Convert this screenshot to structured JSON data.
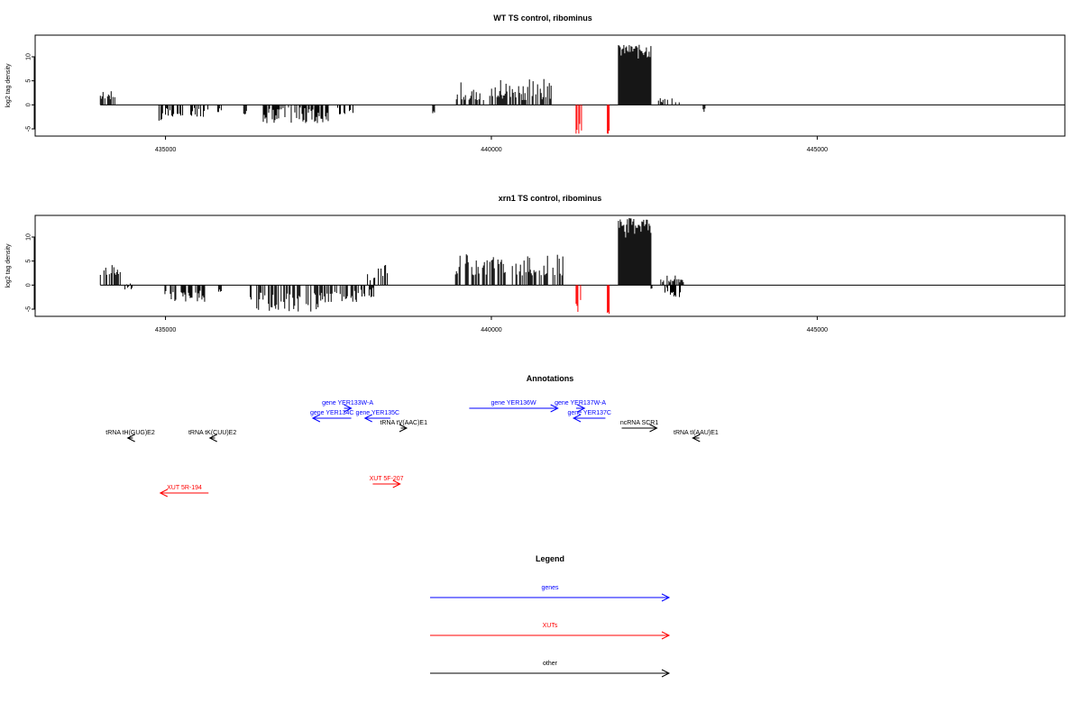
{
  "colors": {
    "genes": "#0000ff",
    "xuts": "#ff0000",
    "other": "#000000",
    "negative_highlight": "#ff0000"
  },
  "chart_data": [
    {
      "type": "bar",
      "title": "WT TS control, ribominus",
      "ylabel": "log2 tag density",
      "xlim": [
        433000,
        448800
      ],
      "ylim": [
        -6.5,
        14.5
      ],
      "xticks": [
        435000,
        440000,
        445000
      ],
      "xtick_labels": [
        "435000",
        "440000",
        "445000"
      ],
      "yticks": [
        -5,
        0,
        5,
        10
      ],
      "ytick_labels": [
        "-5",
        "0",
        "5",
        "10"
      ],
      "baseline": [
        434000,
        448800
      ],
      "segments": [
        {
          "x0": 434000,
          "x1": 434250,
          "min": 1.0,
          "max": 3.0,
          "color": "#000000"
        },
        {
          "x0": 434900,
          "x1": 434960,
          "min": -3.5,
          "max": -1.0,
          "color": "#000000"
        },
        {
          "x0": 435000,
          "x1": 435650,
          "min": -2.5,
          "max": -0.5,
          "color": "#000000"
        },
        {
          "x0": 435800,
          "x1": 435850,
          "min": -1.5,
          "max": -0.5,
          "color": "#000000"
        },
        {
          "x0": 436200,
          "x1": 436240,
          "min": -2.0,
          "max": -1.0,
          "color": "#000000"
        },
        {
          "x0": 436500,
          "x1": 437500,
          "min": -3.8,
          "max": -0.5,
          "color": "#000000"
        },
        {
          "x0": 437600,
          "x1": 437900,
          "min": -2.0,
          "max": -0.5,
          "color": "#000000"
        },
        {
          "x0": 439100,
          "x1": 439130,
          "min": -2.0,
          "max": -1.0,
          "color": "#000000"
        },
        {
          "x0": 439450,
          "x1": 440950,
          "min": 1.0,
          "max": 5.5,
          "color": "#000000"
        },
        {
          "x0": 441300,
          "x1": 441380,
          "min": -6.0,
          "max": -1.5,
          "color": "#ff0000"
        },
        {
          "x0": 441780,
          "x1": 441810,
          "min": -6.0,
          "max": -5.0,
          "color": "#ff0000"
        },
        {
          "x0": 441950,
          "x1": 442450,
          "min": 8.5,
          "max": 12.5,
          "color": "#000000"
        },
        {
          "x0": 442550,
          "x1": 442900,
          "min": 0.5,
          "max": 1.5,
          "color": "#000000"
        },
        {
          "x0": 443250,
          "x1": 443280,
          "min": -1.5,
          "max": -0.5,
          "color": "#000000"
        }
      ]
    },
    {
      "type": "bar",
      "title": "xrn1 TS control, ribominus",
      "ylabel": "log2 tag density",
      "xlim": [
        433000,
        448800
      ],
      "ylim": [
        -6.5,
        14.5
      ],
      "xticks": [
        435000,
        440000,
        445000
      ],
      "xtick_labels": [
        "435000",
        "440000",
        "445000"
      ],
      "yticks": [
        -5,
        0,
        5,
        10
      ],
      "ytick_labels": [
        "-5",
        "0",
        "5",
        "10"
      ],
      "baseline": [
        434000,
        448800
      ],
      "segments": [
        {
          "x0": 434000,
          "x1": 434300,
          "min": 2.0,
          "max": 4.5,
          "color": "#000000"
        },
        {
          "x0": 434350,
          "x1": 434500,
          "min": -1.0,
          "max": 0.5,
          "color": "#000000"
        },
        {
          "x0": 434950,
          "x1": 435600,
          "min": -3.5,
          "max": -1.0,
          "color": "#000000"
        },
        {
          "x0": 435800,
          "x1": 435850,
          "min": -1.5,
          "max": -0.5,
          "color": "#000000"
        },
        {
          "x0": 436300,
          "x1": 436320,
          "min": -3.0,
          "max": -2.0,
          "color": "#000000"
        },
        {
          "x0": 436400,
          "x1": 437500,
          "min": -5.5,
          "max": -1.5,
          "color": "#000000"
        },
        {
          "x0": 437500,
          "x1": 438000,
          "min": -3.5,
          "max": -1.0,
          "color": "#000000"
        },
        {
          "x0": 438100,
          "x1": 438400,
          "min": 1.0,
          "max": 4.5,
          "color": "#000000"
        },
        {
          "x0": 438000,
          "x1": 438200,
          "min": -2.5,
          "max": -0.5,
          "color": "#000000"
        },
        {
          "x0": 439450,
          "x1": 441100,
          "min": 2.0,
          "max": 6.5,
          "color": "#000000"
        },
        {
          "x0": 441300,
          "x1": 441370,
          "min": -6.0,
          "max": -1.5,
          "color": "#ff0000"
        },
        {
          "x0": 441780,
          "x1": 441810,
          "min": -6.0,
          "max": -5.0,
          "color": "#ff0000"
        },
        {
          "x0": 441950,
          "x1": 442450,
          "min": 9.0,
          "max": 14.0,
          "color": "#000000"
        },
        {
          "x0": 442450,
          "x1": 442470,
          "min": -0.8,
          "max": -0.3,
          "color": "#000000"
        },
        {
          "x0": 442600,
          "x1": 442950,
          "min": 0.5,
          "max": 2.0,
          "color": "#000000"
        },
        {
          "x0": 442650,
          "x1": 442900,
          "min": -2.5,
          "max": -0.5,
          "color": "#000000"
        }
      ]
    }
  ],
  "annotations": {
    "title": "Annotations",
    "items": [
      {
        "label": "gene YER133W-A",
        "color": "#0000ff",
        "x0": 437740,
        "x1": 437850,
        "lane": 0
      },
      {
        "label": "gene YER134C",
        "color": "#0000ff",
        "x0": 437850,
        "x1": 437260,
        "lane": 1
      },
      {
        "label": "gene YER135C",
        "color": "#0000ff",
        "x0": 438450,
        "x1": 438060,
        "lane": 1
      },
      {
        "label": "tRNA tV(AAC)E1",
        "color": "#000000",
        "x0": 438610,
        "x1": 438700,
        "lane": 2
      },
      {
        "label": "tRNA tH(GUG)E2",
        "color": "#000000",
        "x0": 434500,
        "x1": 434420,
        "lane": 3
      },
      {
        "label": "tRNA tK(CUU)E2",
        "color": "#000000",
        "x0": 435760,
        "x1": 435680,
        "lane": 3
      },
      {
        "label": "gene YER136W",
        "color": "#0000ff",
        "x0": 439660,
        "x1": 441020,
        "lane": 0
      },
      {
        "label": "gene YER137W-A",
        "color": "#0000ff",
        "x0": 441300,
        "x1": 441430,
        "lane": 0
      },
      {
        "label": "gene YER137C",
        "color": "#0000ff",
        "x0": 441750,
        "x1": 441260,
        "lane": 1
      },
      {
        "label": "ncRNA SCR1",
        "color": "#000000",
        "x0": 442000,
        "x1": 442540,
        "lane": 2
      },
      {
        "label": "tRNA tI(AAU)E1",
        "color": "#000000",
        "x0": 443190,
        "x1": 443090,
        "lane": 3
      },
      {
        "label": "XUT 5R-194",
        "color": "#ff0000",
        "x0": 435660,
        "x1": 434920,
        "lane": 4
      },
      {
        "label": "XUT 5F-207",
        "color": "#ff0000",
        "x0": 438180,
        "x1": 438600,
        "lane": 5
      }
    ]
  },
  "legend": {
    "title": "Legend",
    "items": [
      {
        "label": "genes",
        "color": "#0000ff"
      },
      {
        "label": "XUTs",
        "color": "#ff0000"
      },
      {
        "label": "other",
        "color": "#000000"
      }
    ]
  }
}
